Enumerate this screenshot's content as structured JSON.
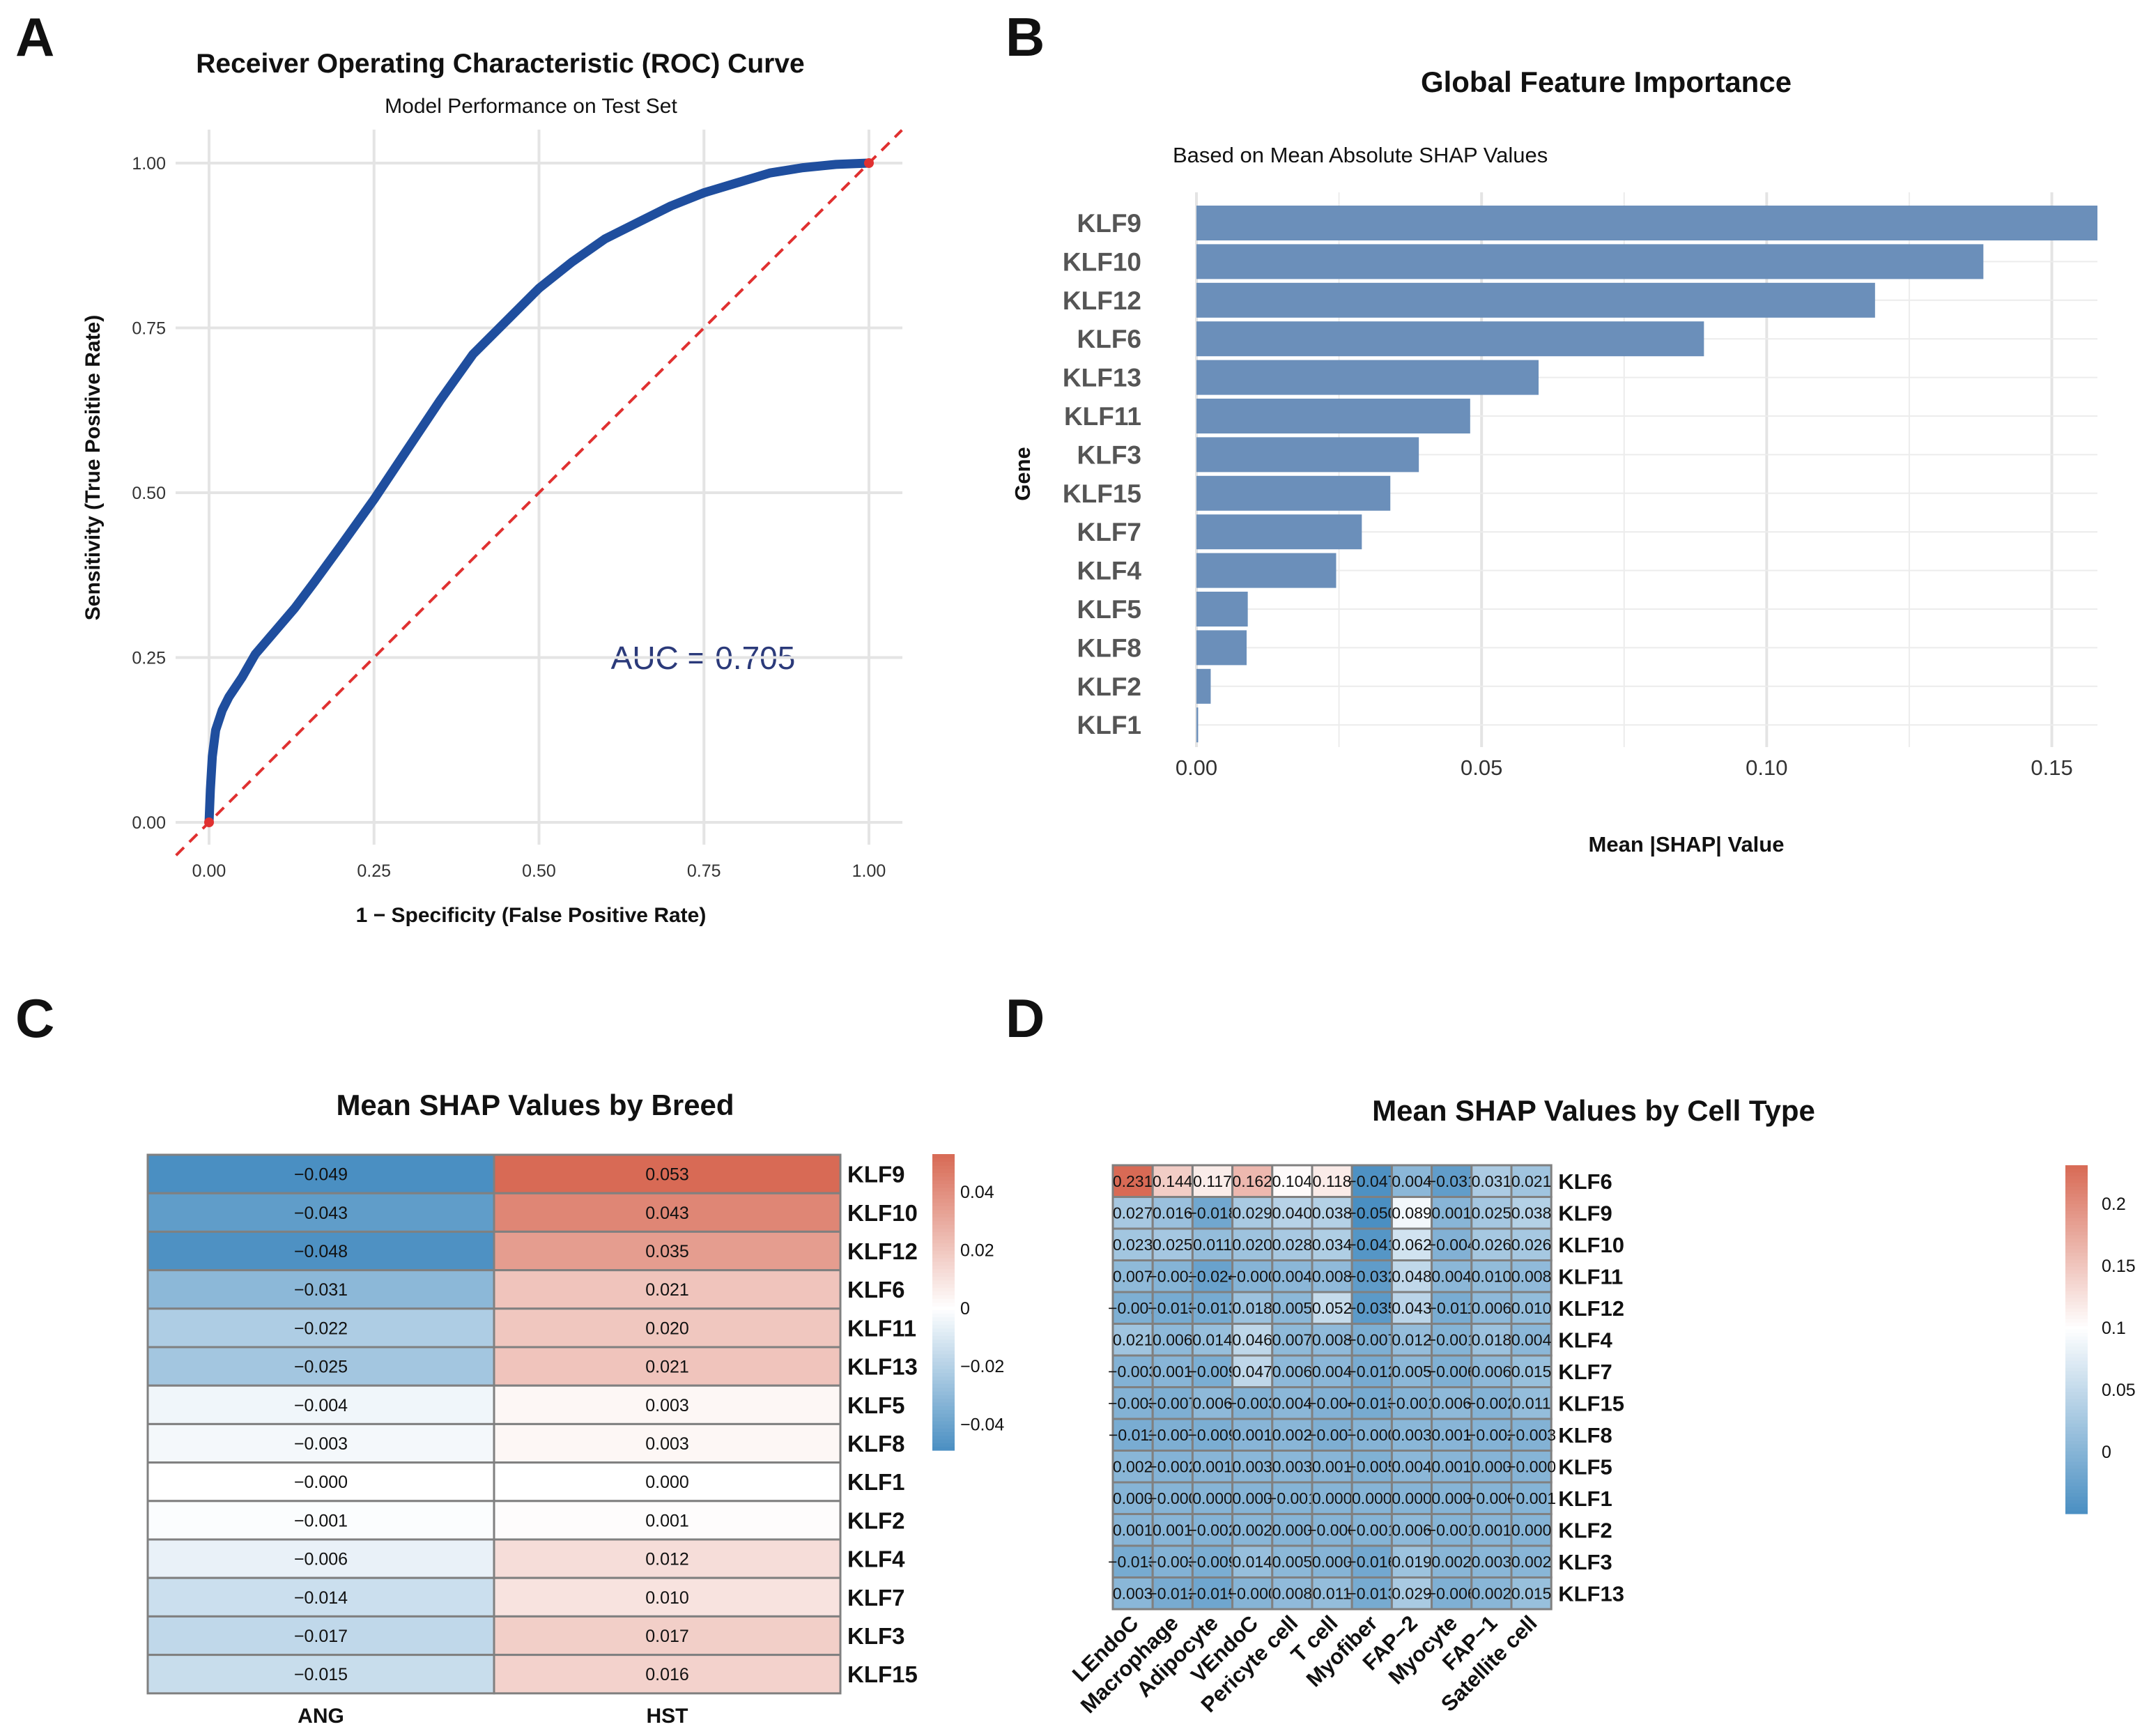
{
  "panels": {
    "A": {
      "letter": "A"
    },
    "B": {
      "letter": "B"
    },
    "C": {
      "letter": "C"
    },
    "D": {
      "letter": "D"
    }
  },
  "chart_data": [
    {
      "panel": "A",
      "type": "line",
      "title": "Receiver Operating Characteristic (ROC) Curve",
      "subtitle": "Model Performance on Test Set",
      "xlabel": "1 − Specificity (False Positive Rate)",
      "ylabel": "Sensitivity (True Positive Rate)",
      "xlim": [
        0,
        1
      ],
      "ylim": [
        0,
        1
      ],
      "xticks": [
        0.0,
        0.25,
        0.5,
        0.75,
        1.0
      ],
      "xtick_labels": [
        "0.00",
        "0.25",
        "0.50",
        "0.75",
        "1.00"
      ],
      "yticks": [
        0.0,
        0.25,
        0.5,
        0.75,
        1.0
      ],
      "ytick_labels": [
        "0.00",
        "0.25",
        "0.50",
        "0.75",
        "1.00"
      ],
      "annotation": "AUC = 0.705",
      "colors": {
        "curve": "#1f4e9e",
        "diagonal": "#e03030",
        "annotation": "#2b3a7a",
        "grid": "#e4e4e4"
      },
      "series": [
        {
          "name": "ROC",
          "x": [
            0,
            0.002,
            0.005,
            0.01,
            0.02,
            0.03,
            0.05,
            0.07,
            0.1,
            0.13,
            0.16,
            0.2,
            0.25,
            0.3,
            0.35,
            0.4,
            0.45,
            0.5,
            0.55,
            0.6,
            0.65,
            0.7,
            0.75,
            0.8,
            0.85,
            0.9,
            0.95,
            1.0
          ],
          "y": [
            0,
            0.05,
            0.1,
            0.14,
            0.17,
            0.19,
            0.22,
            0.255,
            0.29,
            0.325,
            0.365,
            0.42,
            0.49,
            0.565,
            0.64,
            0.71,
            0.76,
            0.81,
            0.85,
            0.885,
            0.91,
            0.935,
            0.955,
            0.97,
            0.985,
            0.993,
            0.998,
            1.0
          ]
        },
        {
          "name": "Chance",
          "x": [
            0,
            1
          ],
          "y": [
            0,
            1
          ]
        }
      ]
    },
    {
      "panel": "B",
      "type": "bar",
      "orientation": "horizontal",
      "title": "Global Feature Importance",
      "subtitle": "Based on Mean Absolute SHAP Values",
      "xlabel": "Mean |SHAP| Value",
      "ylabel": "Gene",
      "xlim": [
        0,
        0.158
      ],
      "xticks": [
        0.0,
        0.05,
        0.1,
        0.15
      ],
      "xtick_labels": [
        "0.00",
        "0.05",
        "0.10",
        "0.15"
      ],
      "bar_color": "#6b8fba",
      "categories": [
        "KLF9",
        "KLF10",
        "KLF12",
        "KLF6",
        "KLF13",
        "KLF11",
        "KLF3",
        "KLF15",
        "KLF7",
        "KLF4",
        "KLF5",
        "KLF8",
        "KLF2",
        "KLF1"
      ],
      "values": [
        0.158,
        0.138,
        0.119,
        0.089,
        0.06,
        0.048,
        0.039,
        0.034,
        0.029,
        0.0245,
        0.009,
        0.0088,
        0.0025,
        0.0003
      ]
    },
    {
      "panel": "C",
      "type": "heatmap",
      "title": "Mean SHAP Values by Breed",
      "columns": [
        "ANG",
        "HST"
      ],
      "rows": [
        "KLF9",
        "KLF10",
        "KLF12",
        "KLF6",
        "KLF11",
        "KLF13",
        "KLF5",
        "KLF8",
        "KLF1",
        "KLF2",
        "KLF4",
        "KLF7",
        "KLF3",
        "KLF15"
      ],
      "values": [
        [
          -0.049,
          0.053
        ],
        [
          -0.043,
          0.043
        ],
        [
          -0.048,
          0.035
        ],
        [
          -0.031,
          0.021
        ],
        [
          -0.022,
          0.02
        ],
        [
          -0.025,
          0.021
        ],
        [
          -0.004,
          0.003
        ],
        [
          -0.003,
          0.003
        ],
        [
          -0.0,
          0.0
        ],
        [
          -0.001,
          0.001
        ],
        [
          -0.006,
          0.012
        ],
        [
          -0.014,
          0.01
        ],
        [
          -0.017,
          0.017
        ],
        [
          -0.015,
          0.016
        ]
      ],
      "labels": [
        [
          "−0.049",
          "0.053"
        ],
        [
          "−0.043",
          "0.043"
        ],
        [
          "−0.048",
          "0.035"
        ],
        [
          "−0.031",
          "0.021"
        ],
        [
          "−0.022",
          "0.020"
        ],
        [
          "−0.025",
          "0.021"
        ],
        [
          "−0.004",
          "0.003"
        ],
        [
          "−0.003",
          "0.003"
        ],
        [
          "−0.000",
          "0.000"
        ],
        [
          "−0.001",
          "0.001"
        ],
        [
          "−0.006",
          "0.012"
        ],
        [
          "−0.014",
          "0.010"
        ],
        [
          "−0.017",
          "0.017"
        ],
        [
          "−0.015",
          "0.016"
        ]
      ],
      "color_range": [
        -0.049,
        0.053
      ],
      "colors": {
        "low": "#4a8fc2",
        "mid": "#ffffff",
        "high": "#d86a55",
        "border": "#808080"
      },
      "legend": {
        "ticks": [
          0.04,
          0.02,
          0,
          -0.02,
          -0.04
        ],
        "labels": [
          "0.04",
          "0.02",
          "0",
          "−0.02",
          "−0.04"
        ]
      }
    },
    {
      "panel": "D",
      "type": "heatmap",
      "title": "Mean SHAP Values by Cell Type",
      "columns": [
        "LEndoC",
        "Macrophage",
        "Adipocyte",
        "VEndoC",
        "Pericyte cell",
        "T cell",
        "Myofiber",
        "FAP−2",
        "Myocyte",
        "FAP−1",
        "Satellite cell"
      ],
      "rows": [
        "KLF6",
        "KLF9",
        "KLF10",
        "KLF11",
        "KLF12",
        "KLF4",
        "KLF7",
        "KLF15",
        "KLF8",
        "KLF5",
        "KLF1",
        "KLF2",
        "KLF3",
        "KLF13"
      ],
      "values": [
        [
          0.231,
          0.144,
          0.117,
          0.162,
          0.104,
          0.118,
          -0.047,
          0.004,
          -0.031,
          0.031,
          0.021
        ],
        [
          0.027,
          0.016,
          -0.018,
          0.029,
          0.04,
          0.038,
          -0.05,
          0.089,
          0.001,
          0.025,
          0.038
        ],
        [
          0.023,
          0.025,
          0.011,
          0.02,
          0.028,
          0.034,
          -0.041,
          0.062,
          -0.004,
          0.026,
          0.026
        ],
        [
          0.007,
          -0.001,
          -0.024,
          -0.0,
          0.004,
          0.008,
          -0.032,
          0.048,
          0.004,
          0.01,
          0.008
        ],
        [
          -0.007,
          -0.013,
          -0.013,
          0.018,
          0.005,
          0.052,
          -0.035,
          0.043,
          -0.011,
          0.006,
          0.01
        ],
        [
          0.021,
          0.006,
          0.014,
          0.046,
          0.007,
          0.008,
          -0.007,
          0.012,
          -0.001,
          0.018,
          0.004
        ],
        [
          -0.003,
          0.001,
          -0.009,
          0.047,
          0.006,
          0.004,
          -0.012,
          0.005,
          -0.006,
          0.006,
          0.015
        ],
        [
          -0.003,
          -0.007,
          0.006,
          -0.003,
          0.004,
          -0.004,
          -0.013,
          -0.001,
          0.006,
          -0.002,
          0.011
        ],
        [
          -0.011,
          -0.007,
          -0.009,
          0.001,
          0.002,
          -0.007,
          -0.0,
          0.003,
          0.001,
          -0.002,
          -0.003
        ],
        [
          0.002,
          -0.002,
          0.001,
          0.003,
          0.003,
          0.001,
          -0.005,
          0.004,
          0.001,
          0.0,
          -0.0
        ],
        [
          0.0,
          -0.0,
          0.0,
          0.0,
          -0.001,
          0.0,
          0.0,
          0.0,
          0.0,
          -0.0,
          -0.001
        ],
        [
          0.001,
          0.001,
          -0.002,
          0.002,
          0.0,
          -0.0,
          -0.001,
          0.006,
          -0.001,
          0.001,
          0.0
        ],
        [
          -0.013,
          -0.003,
          -0.009,
          0.014,
          0.005,
          0.0,
          -0.016,
          0.019,
          0.002,
          0.003,
          0.002
        ],
        [
          0.003,
          -0.012,
          -0.019,
          -0.0,
          0.008,
          0.011,
          -0.013,
          0.029,
          -0.006,
          0.002,
          0.015
        ]
      ],
      "labels": [
        [
          "0.231",
          "0.144",
          "0.117",
          "0.162",
          "0.104",
          "0.118",
          "−0.047",
          "0.004",
          "−0.031",
          "0.031",
          "0.021"
        ],
        [
          "0.027",
          "0.016",
          "−0.018",
          "0.029",
          "0.040",
          "0.038",
          "−0.050",
          "0.089",
          "0.001",
          "0.025",
          "0.038"
        ],
        [
          "0.023",
          "0.025",
          "0.011",
          "0.020",
          "0.028",
          "0.034",
          "−0.041",
          "0.062",
          "−0.004",
          "0.026",
          "0.026"
        ],
        [
          "0.007",
          "−0.001",
          "−0.024",
          "−0.000",
          "0.004",
          "0.008",
          "−0.032",
          "0.048",
          "0.004",
          "0.010",
          "0.008"
        ],
        [
          "−0.007",
          "−0.013",
          "−0.013",
          "0.018",
          "0.005",
          "0.052",
          "−0.035",
          "0.043",
          "−0.011",
          "0.006",
          "0.010"
        ],
        [
          "0.021",
          "0.006",
          "0.014",
          "0.046",
          "0.007",
          "0.008",
          "−0.007",
          "0.012",
          "−0.001",
          "0.018",
          "0.004"
        ],
        [
          "−0.003",
          "0.001",
          "−0.009",
          "0.047",
          "0.006",
          "0.004",
          "−0.012",
          "0.005",
          "−0.006",
          "0.006",
          "0.015"
        ],
        [
          "−0.003",
          "−0.007",
          "0.006",
          "−0.003",
          "0.004",
          "−0.004",
          "−0.013",
          "−0.001",
          "0.006",
          "−0.002",
          "0.011"
        ],
        [
          "−0.011",
          "−0.007",
          "−0.009",
          "0.001",
          "0.002",
          "−0.007",
          "−0.000",
          "0.003",
          "0.001",
          "−0.002",
          "−0.003"
        ],
        [
          "0.002",
          "−0.002",
          "0.001",
          "0.003",
          "0.003",
          "0.001",
          "−0.005",
          "0.004",
          "0.001",
          "0.000",
          "−0.000"
        ],
        [
          "0.000",
          "−0.000",
          "0.000",
          "0.000",
          "−0.001",
          "0.000",
          "0.000",
          "0.000",
          "0.000",
          "−0.000",
          "−0.001"
        ],
        [
          "0.001",
          "0.001",
          "−0.002",
          "0.002",
          "0.000",
          "−0.000",
          "−0.001",
          "0.006",
          "−0.001",
          "0.001",
          "0.000"
        ],
        [
          "−0.013",
          "−0.003",
          "−0.009",
          "0.014",
          "0.005",
          "0.000",
          "−0.016",
          "0.019",
          "0.002",
          "0.003",
          "0.002"
        ],
        [
          "0.003",
          "−0.012",
          "−0.019",
          "−0.000",
          "0.008",
          "0.011",
          "−0.013",
          "0.029",
          "−0.006",
          "0.002",
          "0.015"
        ]
      ],
      "color_range": [
        -0.05,
        0.231
      ],
      "color_mid": 0.1,
      "colors": {
        "low": "#4a8fc2",
        "mid": "#ffffff",
        "high": "#d86a55",
        "border": "#808080"
      },
      "legend": {
        "ticks": [
          0.2,
          0.15,
          0.1,
          0.05,
          0
        ],
        "labels": [
          "0.2",
          "0.15",
          "0.1",
          "0.05",
          "0"
        ]
      }
    }
  ]
}
